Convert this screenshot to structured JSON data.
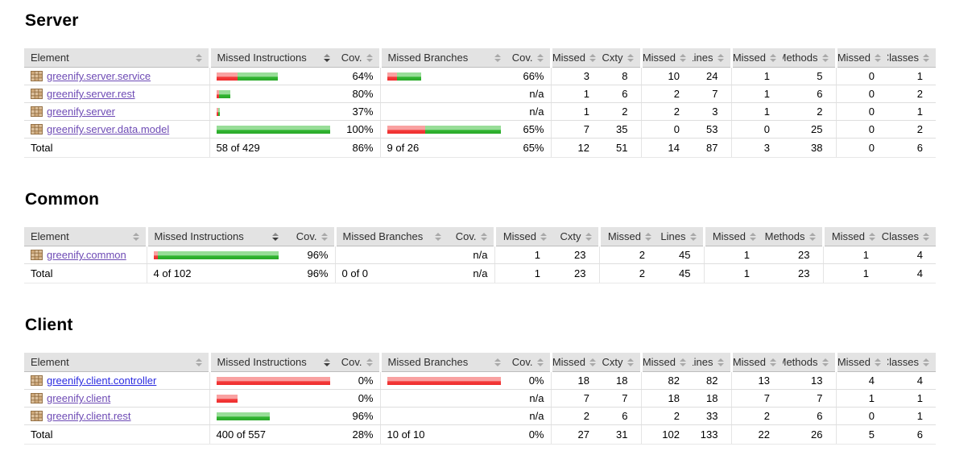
{
  "report": {
    "colors": {
      "header_bg": "#e3e3e3",
      "bar_red": "#f43b3b",
      "bar_red_light": "#f9a1a1",
      "bar_green": "#2fb52f",
      "bar_green_light": "#98dd98",
      "link": "#2a2ae0",
      "link_visited": "#6e4bb5",
      "sort_inactive": "#a9a9a9",
      "sort_active": "#3c3c3c",
      "package_icon": "#8f6a3e"
    },
    "sections": [
      {
        "title": "Server",
        "columns": [
          "Element",
          "Missed Instructions",
          "Cov.",
          "Missed Branches",
          "Cov.",
          "Missed",
          "Cxty",
          "Missed",
          "Lines",
          "Missed",
          "Methods",
          "Missed",
          "Classes"
        ],
        "sorted_column_index": 1,
        "rows": [
          {
            "name": "greenify.server.service",
            "visited": true,
            "ins_bar": [
              26,
              50
            ],
            "ins_cov": "64%",
            "br_bar": [
              12,
              30
            ],
            "br_cov": "66%",
            "nums": [
              "3",
              "8",
              "10",
              "24",
              "1",
              "5",
              "0",
              "1"
            ]
          },
          {
            "name": "greenify.server.rest",
            "visited": true,
            "ins_bar": [
              3,
              14
            ],
            "ins_cov": "80%",
            "br_bar": [
              0,
              0
            ],
            "br_cov": "n/a",
            "nums": [
              "1",
              "6",
              "2",
              "7",
              "1",
              "6",
              "0",
              "2"
            ]
          },
          {
            "name": "greenify.server",
            "visited": true,
            "ins_bar": [
              2,
              2
            ],
            "ins_cov": "37%",
            "br_bar": [
              0,
              0
            ],
            "br_cov": "n/a",
            "nums": [
              "1",
              "2",
              "2",
              "3",
              "1",
              "2",
              "0",
              "1"
            ]
          },
          {
            "name": "greenify.server.data.model",
            "visited": true,
            "ins_bar": [
              0,
              142
            ],
            "ins_cov": "100%",
            "br_bar": [
              48,
              94
            ],
            "br_cov": "65%",
            "nums": [
              "7",
              "35",
              "0",
              "53",
              "0",
              "25",
              "0",
              "2"
            ]
          }
        ],
        "total": {
          "label": "Total",
          "ins": "58 of 429",
          "ins_cov": "86%",
          "br": "9 of 26",
          "br_cov": "65%",
          "nums": [
            "12",
            "51",
            "14",
            "87",
            "3",
            "38",
            "0",
            "6"
          ]
        }
      },
      {
        "title": "Common",
        "columns": [
          "Element",
          "Missed Instructions",
          "Cov.",
          "Missed Branches",
          "Cov.",
          "Missed",
          "Cxty",
          "Missed",
          "Lines",
          "Missed",
          "Methods",
          "Missed",
          "Classes"
        ],
        "sorted_column_index": 1,
        "rows": [
          {
            "name": "greenify.common",
            "visited": true,
            "ins_bar": [
              5,
              150
            ],
            "ins_cov": "96%",
            "br_bar": [
              0,
              0
            ],
            "br_cov": "n/a",
            "nums": [
              "1",
              "23",
              "2",
              "45",
              "1",
              "23",
              "1",
              "4"
            ]
          }
        ],
        "total": {
          "label": "Total",
          "ins": "4 of 102",
          "ins_cov": "96%",
          "br": "0 of 0",
          "br_cov": "n/a",
          "nums": [
            "1",
            "23",
            "2",
            "45",
            "1",
            "23",
            "1",
            "4"
          ]
        }
      },
      {
        "title": "Client",
        "columns": [
          "Element",
          "Missed Instructions",
          "Cov.",
          "Missed Branches",
          "Cov.",
          "Missed",
          "Cxty",
          "Missed",
          "Lines",
          "Missed",
          "Methods",
          "Missed",
          "Classes"
        ],
        "sorted_column_index": 1,
        "rows": [
          {
            "name": "greenify.client.controller",
            "visited": false,
            "ins_bar": [
              142,
              0
            ],
            "ins_cov": "0%",
            "br_bar": [
              142,
              0
            ],
            "br_cov": "0%",
            "nums": [
              "18",
              "18",
              "82",
              "82",
              "13",
              "13",
              "4",
              "4"
            ]
          },
          {
            "name": "greenify.client",
            "visited": true,
            "ins_bar": [
              26,
              0
            ],
            "ins_cov": "0%",
            "br_bar": [
              0,
              0
            ],
            "br_cov": "n/a",
            "nums": [
              "7",
              "7",
              "18",
              "18",
              "7",
              "7",
              "1",
              "1"
            ]
          },
          {
            "name": "greenify.client.rest",
            "visited": true,
            "ins_bar": [
              0,
              66
            ],
            "ins_cov": "96%",
            "br_bar": [
              0,
              0
            ],
            "br_cov": "n/a",
            "nums": [
              "2",
              "6",
              "2",
              "33",
              "2",
              "6",
              "0",
              "1"
            ]
          }
        ],
        "total": {
          "label": "Total",
          "ins": "400 of 557",
          "ins_cov": "28%",
          "br": "10 of 10",
          "br_cov": "0%",
          "nums": [
            "27",
            "31",
            "102",
            "133",
            "22",
            "26",
            "5",
            "6"
          ]
        }
      }
    ]
  }
}
